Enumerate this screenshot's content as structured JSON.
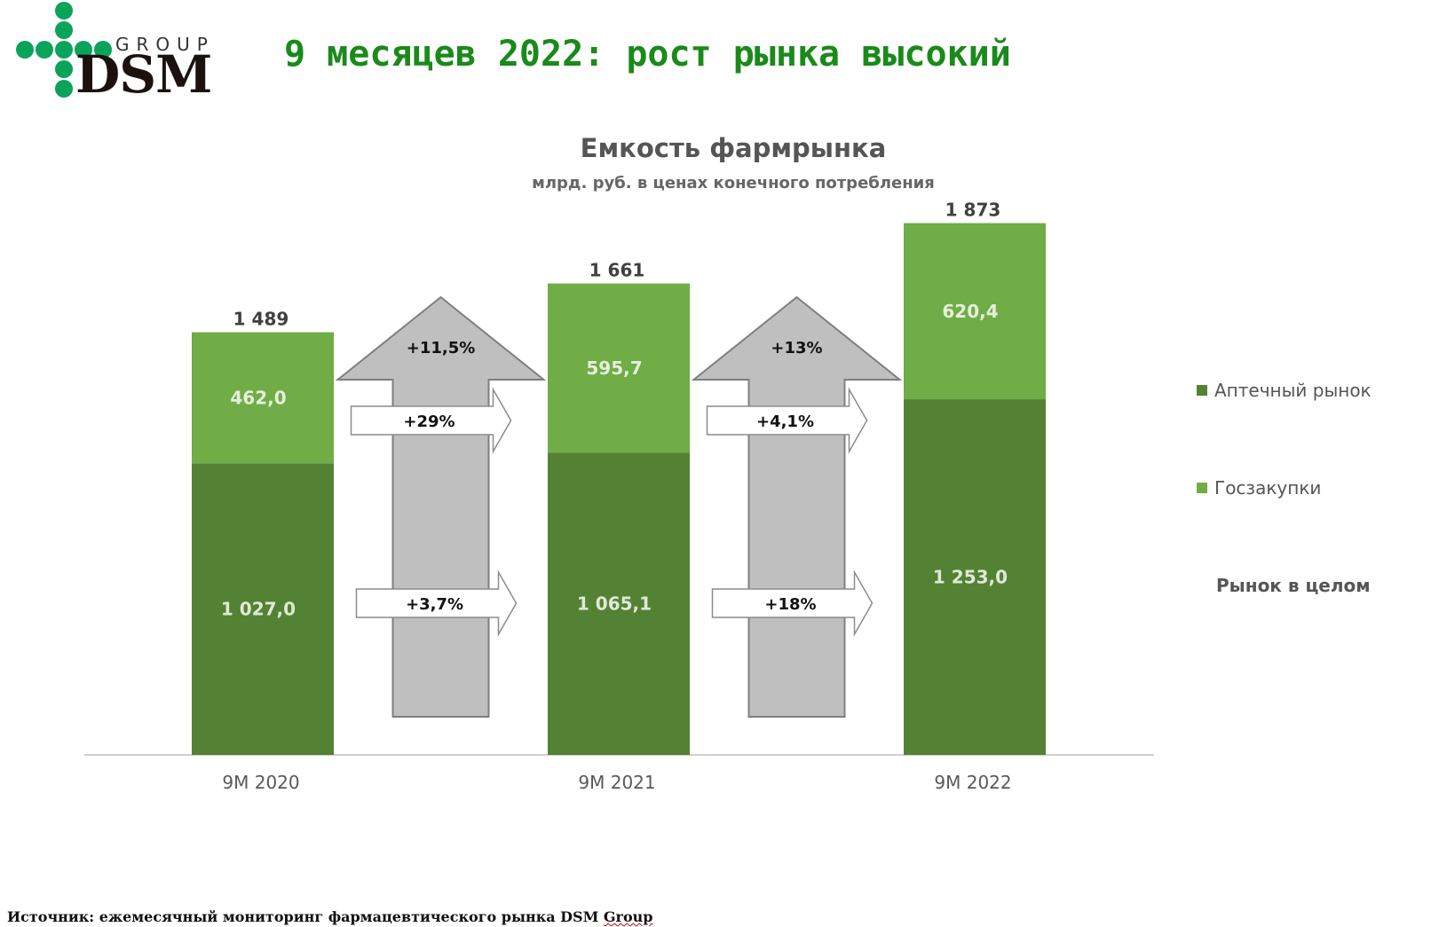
{
  "logo": {
    "group_text": "GROUP",
    "dsm_text": "DSM"
  },
  "headline": "9 месяцев 2022: рост рынка высокий",
  "chart_data": {
    "type": "bar",
    "stacked": true,
    "title": "Емкость фармрынка",
    "subtitle": "млрд. руб. в ценах конечного потребления",
    "categories": [
      "9M 2020",
      "9M 2021",
      "9M 2022"
    ],
    "series": [
      {
        "name": "Аптечный рынок",
        "values": [
          1027.0,
          1065.1,
          1253.0
        ],
        "labels": [
          "1 027,0",
          "1 065,1",
          "1 253,0"
        ],
        "color": "#548235"
      },
      {
        "name": "Госзакупки",
        "values": [
          462.0,
          595.7,
          620.4
        ],
        "labels": [
          "462,0",
          "595,7",
          "620,4"
        ],
        "color": "#70ad47"
      }
    ],
    "totals": {
      "name": "Рынок в целом",
      "values": [
        1489,
        1661,
        1873
      ],
      "labels": [
        "1 489",
        "1 661",
        "1 873"
      ]
    },
    "growth": [
      {
        "between": [
          "9M 2020",
          "9M 2021"
        ],
        "total": "+11,5%",
        "gos": "+29%",
        "pharmacy": "+3,7%"
      },
      {
        "between": [
          "9M 2021",
          "9M 2022"
        ],
        "total": "+13%",
        "gos": "+4,1%",
        "pharmacy": "+18%"
      }
    ],
    "ylim": [
      0,
      2000
    ],
    "grid": false,
    "legend_position": "right"
  },
  "colors": {
    "pharmacy": "#548235",
    "gos": "#70ad47",
    "arrow_fill": "#bfbfbf",
    "headline": "#1a8a1a",
    "logo_dot": "#0aa35a"
  },
  "source": {
    "prefix": "Источник: ежемесячный мониторинг фармацевтического рынка DSM ",
    "brand": "Group"
  }
}
